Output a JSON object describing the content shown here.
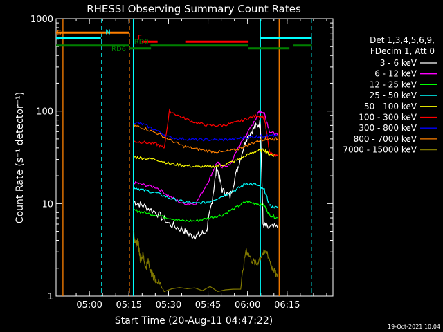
{
  "chart_data": {
    "type": "line",
    "title": "RHESSI Observing Summary Count Rates",
    "xlabel": "Start Time (20-Aug-11 04:47:22)",
    "ylabel": "Count Rate (s⁻¹ detector⁻¹)",
    "xlim_min": [
      0,
      105
    ],
    "ylim": [
      1,
      1000
    ],
    "yscale": "log",
    "x_origin_time": "04:47:22",
    "x_ticks": [
      {
        "t": 12.63,
        "label": "05:00"
      },
      {
        "t": 27.63,
        "label": "05:15"
      },
      {
        "t": 42.63,
        "label": "05:30"
      },
      {
        "t": 57.63,
        "label": "05:45"
      },
      {
        "t": 72.63,
        "label": "06:00"
      },
      {
        "t": 87.63,
        "label": "06:15"
      }
    ],
    "y_ticks": [
      {
        "v": 1,
        "label": "1"
      },
      {
        "v": 10,
        "label": "10"
      },
      {
        "v": 100,
        "label": "100"
      },
      {
        "v": 1000,
        "label": "1000"
      }
    ],
    "timestamp": "19-Oct-2021 10:04",
    "legend_header": [
      "Det 1,3,4,5,6,9,",
      "FDecim 1, Att 0"
    ],
    "series": [
      {
        "name": "3 - 6 keV",
        "color": "#ffffff",
        "x": [
          29.5,
          33,
          38,
          43,
          48,
          51,
          54,
          57,
          59,
          61,
          63,
          66,
          69,
          72,
          75,
          77.5,
          78.5,
          80,
          84
        ],
        "values": [
          10.5,
          9.5,
          8,
          6,
          5.2,
          4.5,
          4.5,
          5,
          10,
          25,
          14,
          12,
          25,
          50,
          65,
          75,
          6,
          5.5,
          5.5
        ]
      },
      {
        "name": "6 - 12 keV",
        "color": "#ff00ff",
        "x": [
          29.5,
          33,
          38,
          43,
          48,
          53,
          58,
          61,
          63,
          66,
          69,
          72,
          75,
          77,
          79,
          81,
          84
        ],
        "values": [
          17,
          16,
          15,
          12,
          10,
          10,
          18,
          28,
          25,
          26,
          40,
          55,
          75,
          100,
          95,
          60,
          55
        ]
      },
      {
        "name": "12 - 25 keV",
        "color": "#00ff00",
        "x": [
          29.5,
          33,
          38,
          43,
          48,
          53,
          58,
          63,
          68,
          72,
          76,
          79,
          81,
          84
        ],
        "values": [
          8.5,
          8,
          7.5,
          7,
          6.5,
          6.5,
          7,
          7.5,
          9,
          10.5,
          10,
          9.5,
          7.5,
          7
        ]
      },
      {
        "name": "25 - 50 keV",
        "color": "#00ffff",
        "x": [
          29.5,
          33,
          38,
          43,
          48,
          53,
          58,
          63,
          68,
          72,
          76,
          79,
          81,
          84
        ],
        "values": [
          15,
          14,
          13,
          11.5,
          10.5,
          10,
          10.5,
          12,
          14,
          16.5,
          16,
          14,
          9.5,
          9
        ]
      },
      {
        "name": "50 - 100 keV",
        "color": "#ffff00",
        "x": [
          29.5,
          33,
          38,
          43,
          48,
          53,
          58,
          63,
          68,
          72,
          76,
          79,
          81,
          84
        ],
        "values": [
          32,
          31,
          30,
          27,
          26,
          25,
          25,
          26,
          29,
          33,
          37,
          38,
          34,
          33
        ]
      },
      {
        "name": "100 - 300 keV",
        "color": "#ff0000",
        "x": [
          29.5,
          33,
          38,
          41,
          43,
          48,
          53,
          58,
          63,
          68,
          72,
          76,
          79,
          81,
          84
        ],
        "values": [
          47,
          46,
          44,
          40,
          100,
          85,
          75,
          70,
          70,
          75,
          82,
          90,
          85,
          35,
          33
        ]
      },
      {
        "name": "300 - 800 keV",
        "color": "#0000ff",
        "x": [
          29.5,
          33,
          38,
          43,
          48,
          53,
          58,
          63,
          68,
          72,
          76,
          79,
          81,
          84
        ],
        "values": [
          76,
          72,
          62,
          52,
          50,
          49,
          49,
          49,
          50,
          52,
          53,
          54,
          54,
          54
        ]
      },
      {
        "name": "800 - 7000 keV",
        "color": "#ff8000",
        "x": [
          29.5,
          33,
          38,
          43,
          48,
          53,
          58,
          63,
          68,
          72,
          76,
          79,
          81,
          84
        ],
        "values": [
          70,
          66,
          58,
          49,
          42,
          39,
          37,
          36,
          38,
          42,
          47,
          50,
          50,
          50
        ]
      },
      {
        "name": "7000 - 15000 keV",
        "color": "#807800",
        "x": [
          29.5,
          30,
          31,
          32,
          33,
          34,
          35,
          36,
          37,
          38,
          41,
          70,
          72,
          74,
          76,
          78,
          80,
          82,
          84
        ],
        "values": [
          5,
          3.5,
          4,
          2.5,
          2.8,
          2,
          2.4,
          1.8,
          1.6,
          1.5,
          1.2,
          1.2,
          3.2,
          2.5,
          2.2,
          2.8,
          3,
          2,
          1.6
        ]
      }
    ],
    "bars": [
      {
        "label": "S",
        "color": "#ff8000",
        "level_pct": 45,
        "segments": [
          [
            0,
            27.8
          ]
        ]
      },
      {
        "label": "N",
        "color": "#00ffff",
        "level_pct": 61,
        "segments": [
          [
            0,
            17
          ],
          [
            77.5,
            97
          ]
        ]
      },
      {
        "label": "F",
        "color": "#ff0000",
        "level_pct": 74,
        "segments": [
          [
            32.5,
            38.5
          ],
          [
            49,
            73
          ]
        ]
      },
      {
        "label": "RD0",
        "color": "#008000",
        "level_pct": 86,
        "segments": [
          [
            0,
            27.8
          ],
          [
            35.8,
            72.8
          ],
          [
            90,
            97
          ]
        ]
      },
      {
        "label": "RD6",
        "color": "#008000",
        "level_pct": 95,
        "segments": [
          [
            27.8,
            36
          ],
          [
            72.8,
            88.5
          ]
        ]
      }
    ],
    "vlines": [
      {
        "t": 2.6,
        "color": "#ff8000",
        "style": "solid"
      },
      {
        "t": 17.3,
        "color": "#00ffff",
        "style": "dashed"
      },
      {
        "t": 27.8,
        "color": "#ff8000",
        "style": "dashed"
      },
      {
        "t": 29.3,
        "color": "#00ffff",
        "style": "solid"
      },
      {
        "t": 77.5,
        "color": "#00ffff",
        "style": "solid"
      },
      {
        "t": 84.6,
        "color": "#ff8000",
        "style": "solid"
      },
      {
        "t": 96.8,
        "color": "#00ffff",
        "style": "dashed"
      }
    ]
  }
}
